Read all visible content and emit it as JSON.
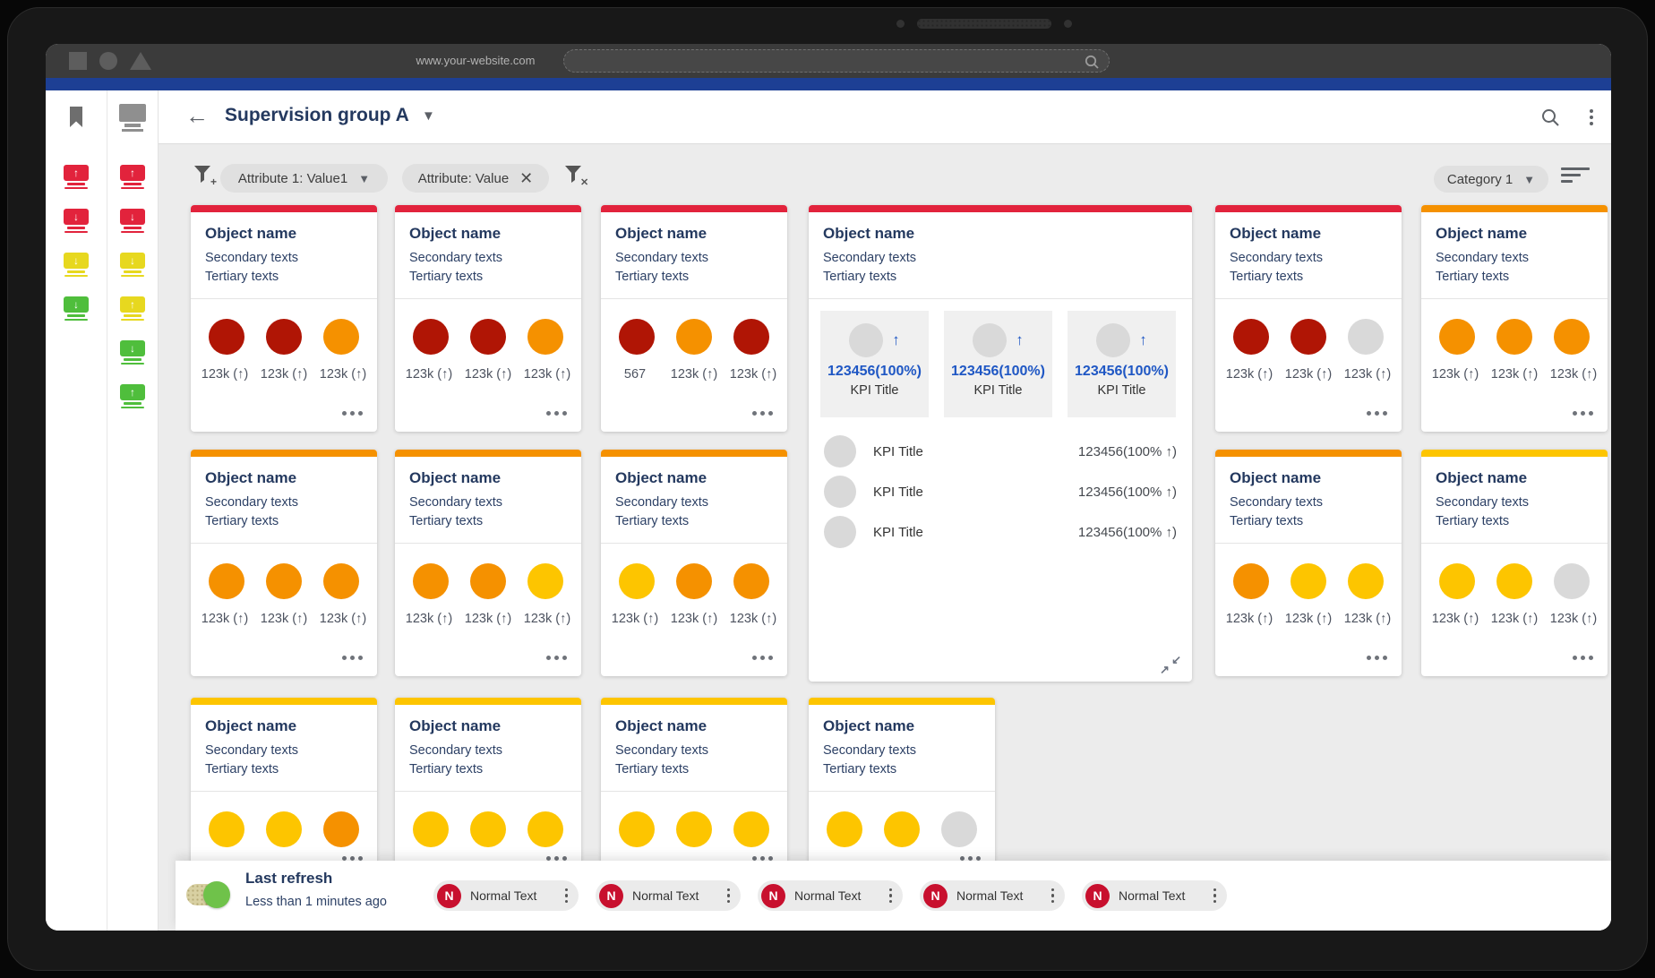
{
  "browser": {
    "url": "www.your-website.com",
    "search_placeholder": ""
  },
  "header": {
    "title": "Supervision group A"
  },
  "filters": {
    "add_filter_icon": "funnel-plus-icon",
    "clear_filter_icon": "funnel-x-icon",
    "chips": [
      {
        "label": "Attribute 1: Value1",
        "type": "dropdown"
      },
      {
        "label": "Attribute: Value",
        "type": "removable"
      }
    ],
    "category_label": "Category 1"
  },
  "sidebar": {
    "columns": [
      {
        "icon": "bookmark",
        "alerts": [
          {
            "color": "red",
            "dir": "up"
          },
          {
            "color": "red",
            "dir": "down"
          },
          {
            "color": "yellow",
            "dir": "down"
          },
          {
            "color": "green",
            "dir": "down"
          }
        ]
      },
      {
        "icon": "monitor",
        "alerts": [
          {
            "color": "red",
            "dir": "up"
          },
          {
            "color": "red",
            "dir": "down"
          },
          {
            "color": "yellow",
            "dir": "down"
          },
          {
            "color": "yellow",
            "dir": "up"
          },
          {
            "color": "green",
            "dir": "down"
          },
          {
            "color": "green",
            "dir": "up"
          }
        ]
      }
    ]
  },
  "cards": [
    {
      "row": 0,
      "col": 0,
      "accent": "red",
      "title": "Object name",
      "secondary": "Secondary texts",
      "tertiary": "Tertiary texts",
      "circles": [
        "darkred",
        "darkred",
        "orange"
      ],
      "values": [
        "123k (↑)",
        "123k (↑)",
        "123k (↑)"
      ]
    },
    {
      "row": 0,
      "col": 1,
      "accent": "red",
      "title": "Object name",
      "secondary": "Secondary texts",
      "tertiary": "Tertiary texts",
      "circles": [
        "darkred",
        "darkred",
        "orange"
      ],
      "values": [
        "123k (↑)",
        "123k (↑)",
        "123k (↑)"
      ]
    },
    {
      "row": 0,
      "col": 2,
      "accent": "red",
      "title": "Object name",
      "secondary": "Secondary texts",
      "tertiary": "Tertiary texts",
      "circles": [
        "darkred",
        "orange",
        "darkred"
      ],
      "values": [
        "567",
        "123k (↑)",
        "123k (↑)"
      ]
    },
    {
      "row": 0,
      "col": 4,
      "accent": "red",
      "title": "Object name",
      "secondary": "Secondary texts",
      "tertiary": "Tertiary texts",
      "circles": [
        "darkred",
        "darkred",
        "gray"
      ],
      "values": [
        "123k (↑)",
        "123k (↑)",
        "123k (↑)"
      ]
    },
    {
      "row": 0,
      "col": 5,
      "accent": "orange",
      "title": "Object name",
      "secondary": "Secondary texts",
      "tertiary": "Tertiary texts",
      "circles": [
        "orange",
        "orange",
        "orange"
      ],
      "values": [
        "123k (↑)",
        "123k (↑)",
        "123k (↑)"
      ]
    },
    {
      "row": 1,
      "col": 0,
      "accent": "orange",
      "title": "Object name",
      "secondary": "Secondary texts",
      "tertiary": "Tertiary texts",
      "circles": [
        "orange",
        "orange",
        "orange"
      ],
      "values": [
        "123k (↑)",
        "123k (↑)",
        "123k (↑)"
      ]
    },
    {
      "row": 1,
      "col": 1,
      "accent": "orange",
      "title": "Object name",
      "secondary": "Secondary texts",
      "tertiary": "Tertiary texts",
      "circles": [
        "orange",
        "orange",
        "gold"
      ],
      "values": [
        "123k (↑)",
        "123k (↑)",
        "123k (↑)"
      ]
    },
    {
      "row": 1,
      "col": 2,
      "accent": "orange",
      "title": "Object name",
      "secondary": "Secondary texts",
      "tertiary": "Tertiary texts",
      "circles": [
        "gold",
        "orange",
        "orange"
      ],
      "values": [
        "123k (↑)",
        "123k (↑)",
        "123k (↑)"
      ]
    },
    {
      "row": 1,
      "col": 4,
      "accent": "orange",
      "title": "Object name",
      "secondary": "Secondary texts",
      "tertiary": "Tertiary texts",
      "circles": [
        "orange",
        "gold",
        "gold"
      ],
      "values": [
        "123k (↑)",
        "123k (↑)",
        "123k (↑)"
      ]
    },
    {
      "row": 1,
      "col": 5,
      "accent": "gold",
      "title": "Object name",
      "secondary": "Secondary texts",
      "tertiary": "Tertiary texts",
      "circles": [
        "gold",
        "gold",
        "gray"
      ],
      "values": [
        "123k (↑)",
        "123k (↑)",
        "123k (↑)"
      ]
    },
    {
      "row": 2,
      "col": 0,
      "accent": "gold",
      "title": "Object name",
      "secondary": "Secondary texts",
      "tertiary": "Tertiary texts",
      "circles": [
        "gold",
        "gold",
        "orange"
      ],
      "values": []
    },
    {
      "row": 2,
      "col": 1,
      "accent": "gold",
      "title": "Object name",
      "secondary": "Secondary texts",
      "tertiary": "Tertiary texts",
      "circles": [
        "gold",
        "gold",
        "gold"
      ],
      "values": []
    },
    {
      "row": 2,
      "col": 2,
      "accent": "gold",
      "title": "Object name",
      "secondary": "Secondary texts",
      "tertiary": "Tertiary texts",
      "circles": [
        "gold",
        "gold",
        "gold"
      ],
      "values": []
    },
    {
      "row": 2,
      "col": 3,
      "accent": "gold",
      "title": "Object name",
      "secondary": "Secondary texts",
      "tertiary": "Tertiary texts",
      "circles": [
        "gold",
        "gold",
        "gray"
      ],
      "values": []
    }
  ],
  "big_card": {
    "accent": "red",
    "title": "Object name",
    "secondary": "Secondary texts",
    "tertiary": "Tertiary texts",
    "tiles": [
      {
        "value": "123456(100%)",
        "title": "KPI Title",
        "trend": "up"
      },
      {
        "value": "123456(100%)",
        "title": "KPI Title",
        "trend": "up"
      },
      {
        "value": "123456(100%)",
        "title": "KPI Title",
        "trend": "up"
      }
    ],
    "rows": [
      {
        "title": "KPI Title",
        "value": "123456(100% ↑)"
      },
      {
        "title": "KPI Title",
        "value": "123456(100% ↑)"
      },
      {
        "title": "KPI Title",
        "value": "123456(100% ↑)"
      }
    ]
  },
  "footer": {
    "toggle_state": "on",
    "last_refresh_label": "Last refresh",
    "last_refresh_sub": "Less than 1 minutes ago",
    "chips": [
      {
        "badge": "N",
        "label": "Normal Text"
      },
      {
        "badge": "N",
        "label": "Normal Text"
      },
      {
        "badge": "N",
        "label": "Normal Text"
      },
      {
        "badge": "N",
        "label": "Normal Text"
      },
      {
        "badge": "N",
        "label": "Normal Text"
      }
    ]
  },
  "colors": {
    "red": "#e2233c",
    "orange": "#f59100",
    "gold": "#fdc500",
    "darkred": "#b01505",
    "gray": "#d9d9d9",
    "green": "#4fbe3c",
    "yellow": "#e7d81f",
    "navy": "#24395f",
    "blue": "#1f57c4",
    "chipred": "#c8102e",
    "bluebar": "#1d3f94",
    "toggletrack": "#d8d0a2",
    "toggleknob": "#6fc24a"
  }
}
